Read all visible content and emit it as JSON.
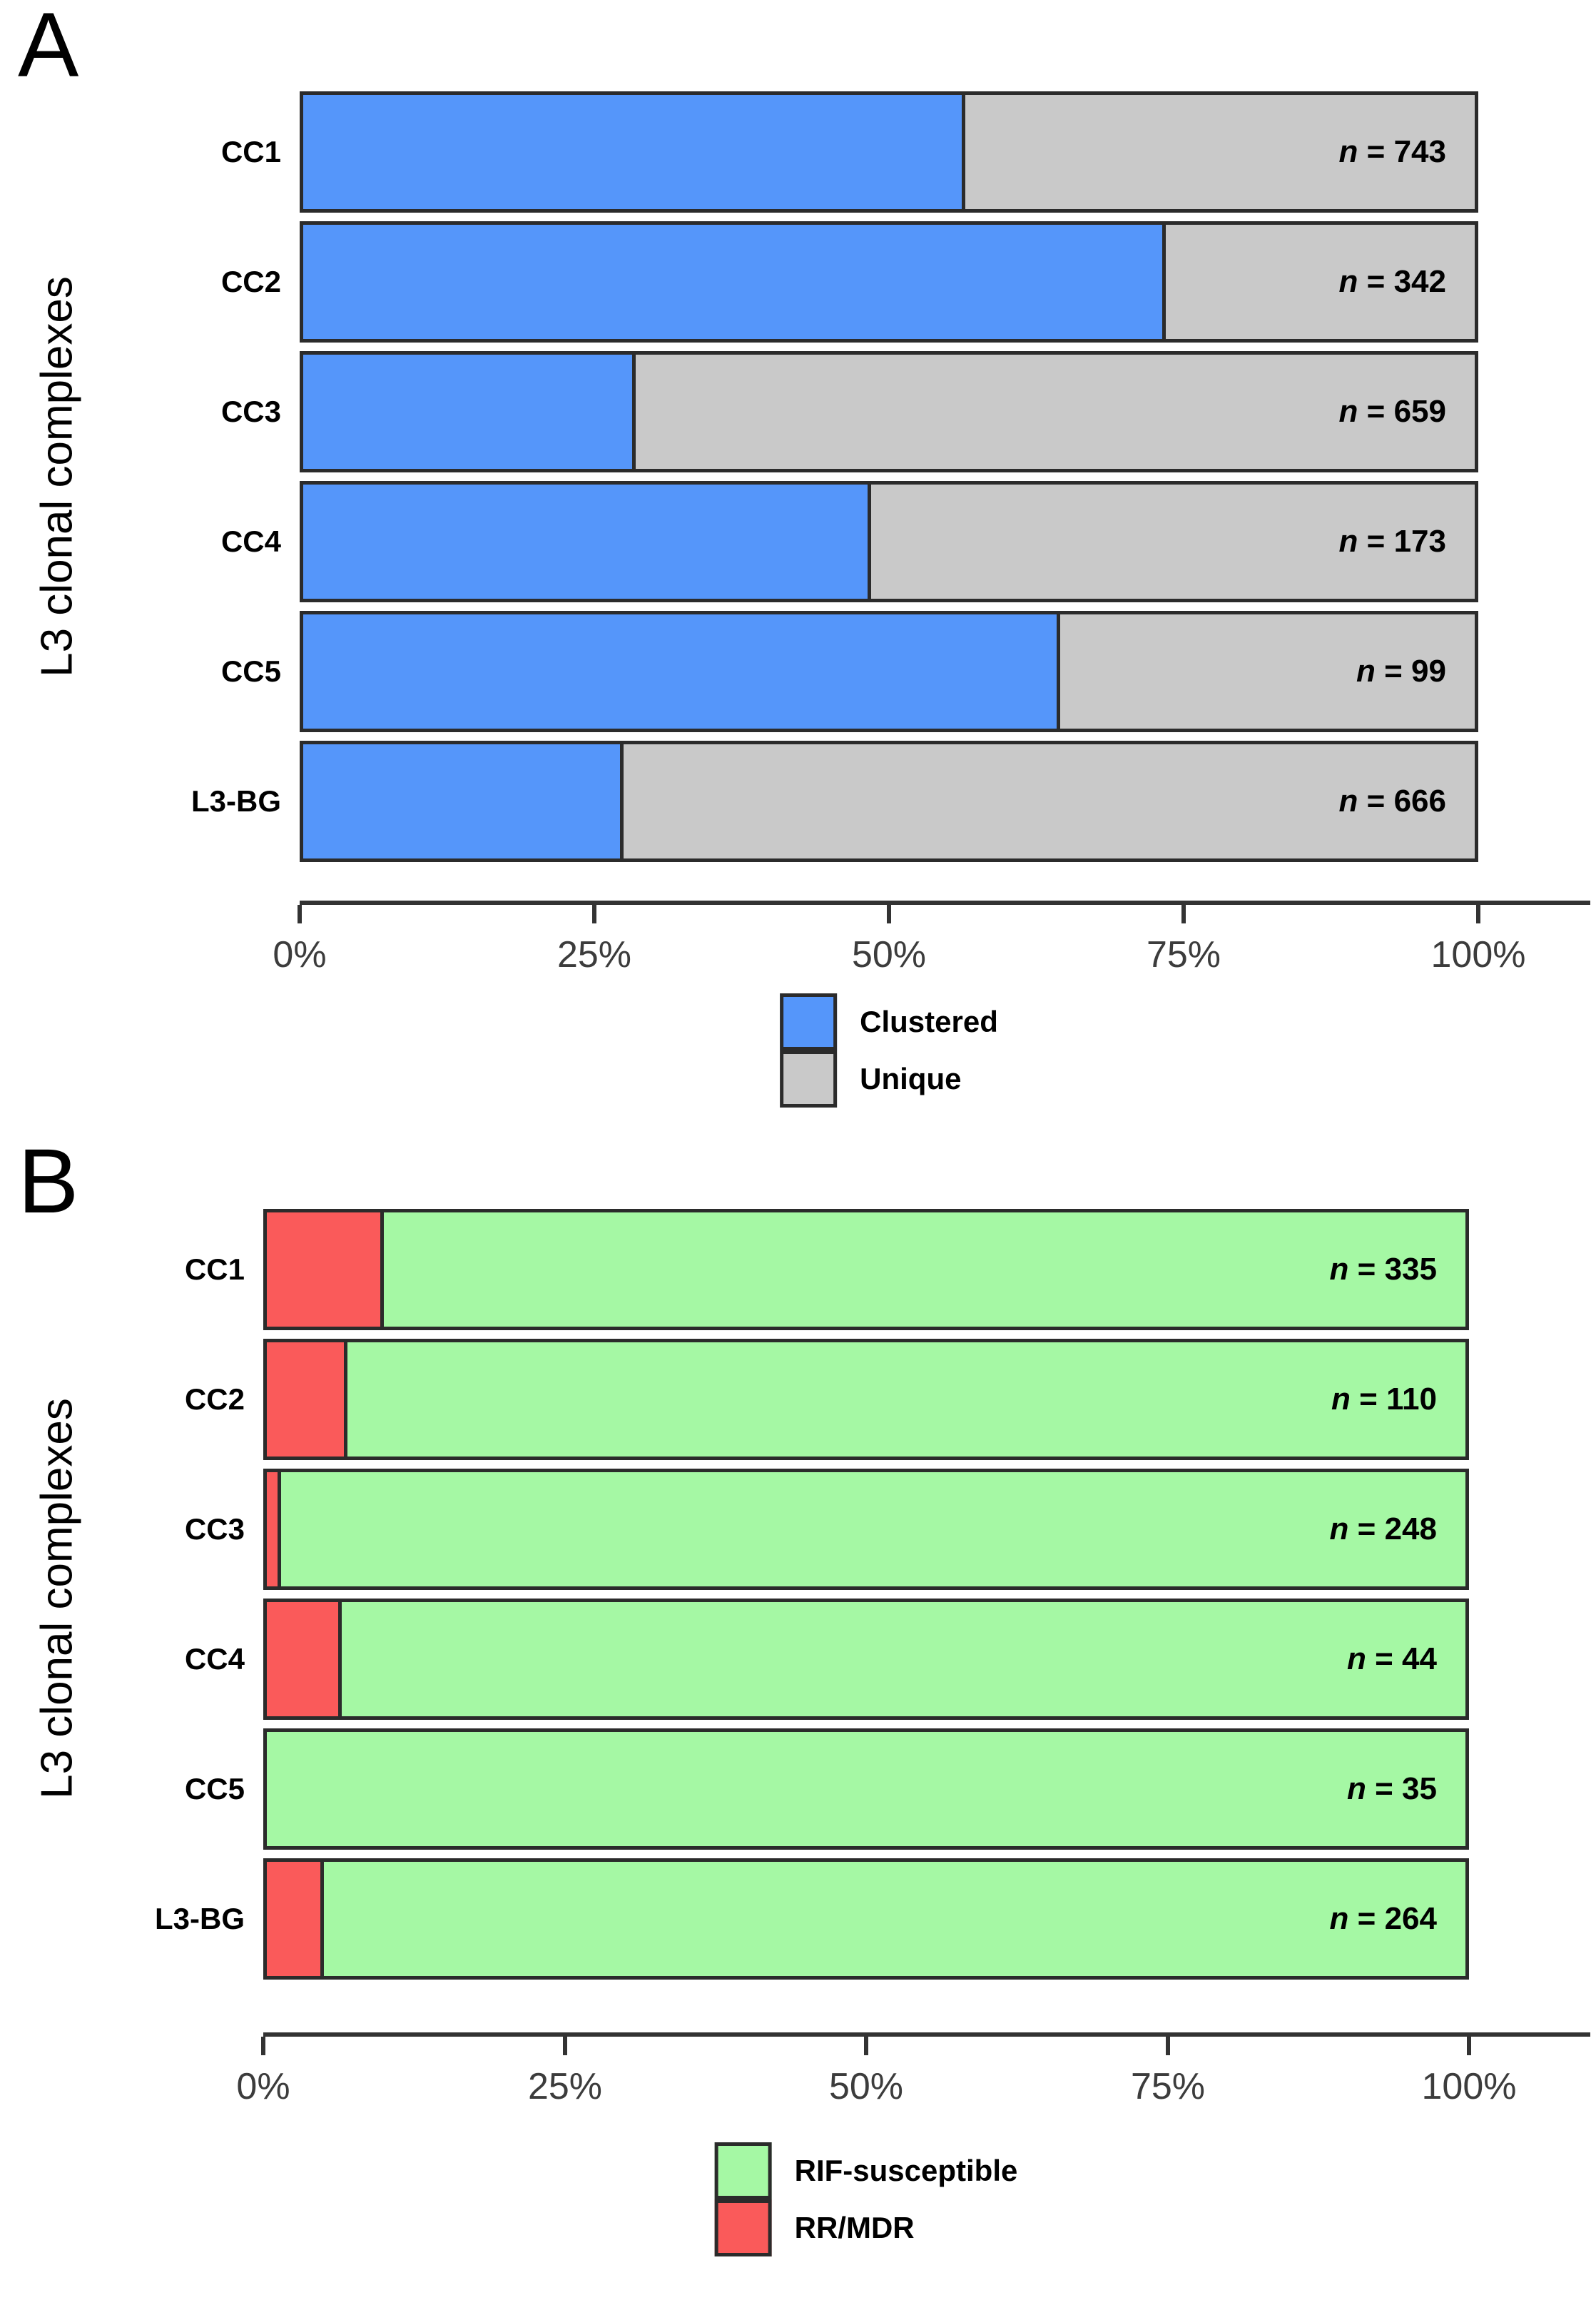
{
  "chart_data": [
    {
      "type": "bar",
      "orientation": "horizontal",
      "stacked": true,
      "panel_letter": "A",
      "ylabel": "L3 clonal complexes",
      "categories": [
        "CC1",
        "CC2",
        "CC3",
        "CC4",
        "CC5",
        "L3-BG"
      ],
      "series": [
        {
          "name": "Clustered",
          "color": "#5596FA",
          "values_pct": [
            56.5,
            73.5,
            28.5,
            48.5,
            64.5,
            27.5
          ]
        },
        {
          "name": "Unique",
          "color": "#C9C9C9",
          "values_pct": [
            43.5,
            26.5,
            71.5,
            51.5,
            35.5,
            72.5
          ]
        }
      ],
      "n_symbol": "n",
      "n_sep": " = ",
      "n": [
        "743",
        "342",
        "659",
        "173",
        "99",
        "666"
      ],
      "x_ticks": [
        "0%",
        "25%",
        "50%",
        "75%",
        "100%"
      ],
      "xlim": [
        0,
        100
      ],
      "grid": false,
      "legend_position": "bottom",
      "legend": [
        {
          "label": "Clustered",
          "color": "#5596FA"
        },
        {
          "label": "Unique",
          "color": "#C9C9C9"
        }
      ],
      "bar_border_color": "#2b2b2b",
      "axis_color": "#333333"
    },
    {
      "type": "bar",
      "orientation": "horizontal",
      "stacked": true,
      "panel_letter": "B",
      "ylabel": "L3 clonal complexes",
      "categories": [
        "CC1",
        "CC2",
        "CC3",
        "CC4",
        "CC5",
        "L3-BG"
      ],
      "series": [
        {
          "name": "RR/MDR",
          "color": "#FA5A5A",
          "values_pct": [
            10,
            7,
            1.5,
            6.5,
            0,
            5
          ]
        },
        {
          "name": "RIF-susceptible",
          "color": "#A5F8A4",
          "values_pct": [
            90,
            93,
            98.5,
            93.5,
            100,
            95
          ]
        }
      ],
      "n_symbol": "n",
      "n_sep": " = ",
      "n": [
        "335",
        "110",
        "248",
        "44",
        "35",
        "264"
      ],
      "x_ticks": [
        "0%",
        "25%",
        "50%",
        "75%",
        "100%"
      ],
      "xlim": [
        0,
        100
      ],
      "grid": false,
      "legend_position": "bottom",
      "legend": [
        {
          "label": "RIF-susceptible",
          "color": "#A5F8A4"
        },
        {
          "label": "RR/MDR",
          "color": "#FA5A5A"
        }
      ],
      "bar_border_color": "#2b2b2b",
      "axis_color": "#333333"
    }
  ]
}
